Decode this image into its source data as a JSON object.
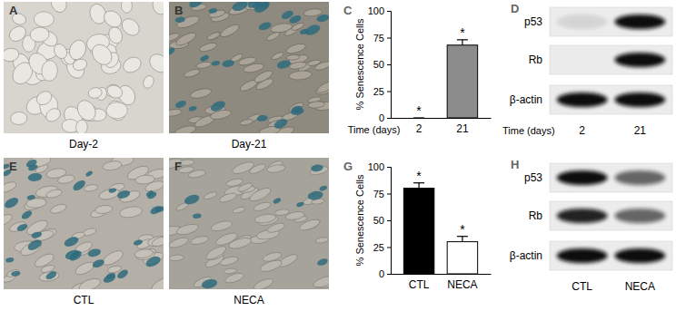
{
  "panels": [
    {
      "panel": "A",
      "type": "image",
      "caption": "Day-2"
    },
    {
      "panel": "B",
      "type": "image",
      "caption": "Day-21"
    },
    {
      "panel": "E",
      "type": "image",
      "caption": "CTL"
    },
    {
      "panel": "F",
      "type": "image",
      "caption": "NECA"
    }
  ],
  "chart_data": [
    {
      "panel": "C",
      "type": "bar",
      "y_label": "% Senescence Cells",
      "x_label": "Time (days)",
      "categories": [
        "2",
        "21"
      ],
      "values": [
        0,
        68
      ],
      "errors": [
        0,
        5
      ],
      "annotations": [
        "*",
        "*"
      ],
      "colors": [
        "#8c8c8c",
        "#8c8c8c"
      ],
      "ylim": [
        0,
        100
      ],
      "yticks": [
        0,
        25,
        50,
        75,
        100
      ]
    },
    {
      "panel": "G",
      "type": "bar",
      "y_label": "% Senescence Cells",
      "categories": [
        "CTL",
        "NECA"
      ],
      "values": [
        80,
        30
      ],
      "errors": [
        5,
        5
      ],
      "annotations": [
        "*",
        "*"
      ],
      "colors": [
        "#000000",
        "#ffffff"
      ],
      "ylim": [
        0,
        100
      ],
      "yticks": [
        0,
        25,
        50,
        75,
        100
      ]
    }
  ],
  "blots": [
    {
      "panel": "D",
      "rows": [
        "p53",
        "Rb",
        "β-actin"
      ],
      "x_label": "Time (days)",
      "lanes": [
        "2",
        "21"
      ],
      "intensity": [
        [
          0.1,
          1.0
        ],
        [
          0.0,
          1.0
        ],
        [
          1.0,
          1.0
        ]
      ]
    },
    {
      "panel": "H",
      "rows": [
        "p53",
        "Rb",
        "β-actin"
      ],
      "lanes": [
        "CTL",
        "NECA"
      ],
      "intensity": [
        [
          1.0,
          0.6
        ],
        [
          0.9,
          0.6
        ],
        [
          1.0,
          1.0
        ]
      ]
    }
  ]
}
